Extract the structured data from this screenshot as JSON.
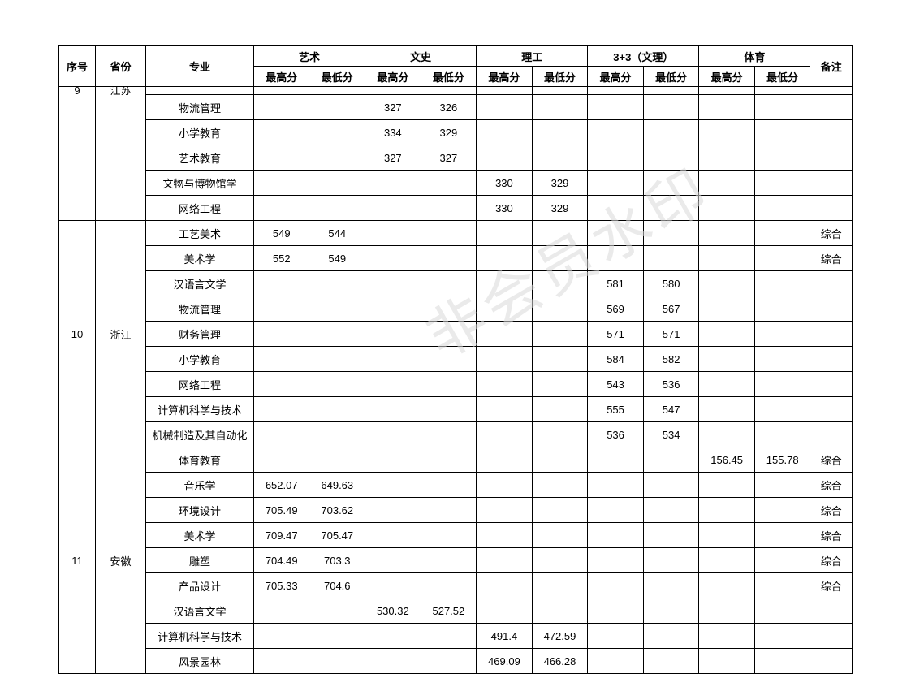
{
  "watermark_text": "非会员水印",
  "watermark_color": "#d9d9d9",
  "border_color": "#000000",
  "background_color": "#ffffff",
  "font_family": "SimSun",
  "header": {
    "idx": "序号",
    "province": "省份",
    "major": "专业",
    "groups": [
      {
        "label": "艺术",
        "hi": "最高分",
        "lo": "最低分"
      },
      {
        "label": "文史",
        "hi": "最高分",
        "lo": "最低分"
      },
      {
        "label": "理工",
        "hi": "最高分",
        "lo": "最低分"
      },
      {
        "label": "3+3（文理）",
        "hi": "最高分",
        "lo": "最低分"
      },
      {
        "label": "体育",
        "hi": "最高分",
        "lo": "最低分"
      }
    ],
    "remark": "备注"
  },
  "blocks": [
    {
      "idx": "9",
      "province": "江苏",
      "partial_top": true,
      "rows": [
        {
          "major": "物流管理",
          "ws_hi": "327",
          "ws_lo": "326"
        },
        {
          "major": "小学教育",
          "ws_hi": "334",
          "ws_lo": "329"
        },
        {
          "major": "艺术教育",
          "ws_hi": "327",
          "ws_lo": "327"
        },
        {
          "major": "文物与博物馆学",
          "lg_hi": "330",
          "lg_lo": "329"
        },
        {
          "major": "网络工程",
          "lg_hi": "330",
          "lg_lo": "329"
        }
      ]
    },
    {
      "idx": "10",
      "province": "浙江",
      "rows": [
        {
          "major": "工艺美术",
          "ys_hi": "549",
          "ys_lo": "544",
          "remark": "综合"
        },
        {
          "major": "美术学",
          "ys_hi": "552",
          "ys_lo": "549",
          "remark": "综合"
        },
        {
          "major": "汉语言文学",
          "sp_hi": "581",
          "sp_lo": "580"
        },
        {
          "major": "物流管理",
          "sp_hi": "569",
          "sp_lo": "567"
        },
        {
          "major": "财务管理",
          "sp_hi": "571",
          "sp_lo": "571"
        },
        {
          "major": "小学教育",
          "sp_hi": "584",
          "sp_lo": "582"
        },
        {
          "major": "网络工程",
          "sp_hi": "543",
          "sp_lo": "536"
        },
        {
          "major": "计算机科学与技术",
          "sp_hi": "555",
          "sp_lo": "547"
        },
        {
          "major": "机械制造及其自动化",
          "sp_hi": "536",
          "sp_lo": "534"
        }
      ]
    },
    {
      "idx": "11",
      "province": "安徽",
      "rows": [
        {
          "major": "体育教育",
          "ty_hi": "156.45",
          "ty_lo": "155.78",
          "remark": "综合"
        },
        {
          "major": "音乐学",
          "ys_hi": "652.07",
          "ys_lo": "649.63",
          "remark": "综合"
        },
        {
          "major": "环境设计",
          "ys_hi": "705.49",
          "ys_lo": "703.62",
          "remark": "综合"
        },
        {
          "major": "美术学",
          "ys_hi": "709.47",
          "ys_lo": "705.47",
          "remark": "综合"
        },
        {
          "major": "雕塑",
          "ys_hi": "704.49",
          "ys_lo": "703.3",
          "remark": "综合"
        },
        {
          "major": "产品设计",
          "ys_hi": "705.33",
          "ys_lo": "704.6",
          "remark": "综合"
        },
        {
          "major": "汉语言文学",
          "ws_hi": "530.32",
          "ws_lo": "527.52"
        },
        {
          "major": "计算机科学与技术",
          "lg_hi": "491.4",
          "lg_lo": "472.59"
        },
        {
          "major": "风景园林",
          "lg_hi": "469.09",
          "lg_lo": "466.28"
        }
      ]
    }
  ]
}
